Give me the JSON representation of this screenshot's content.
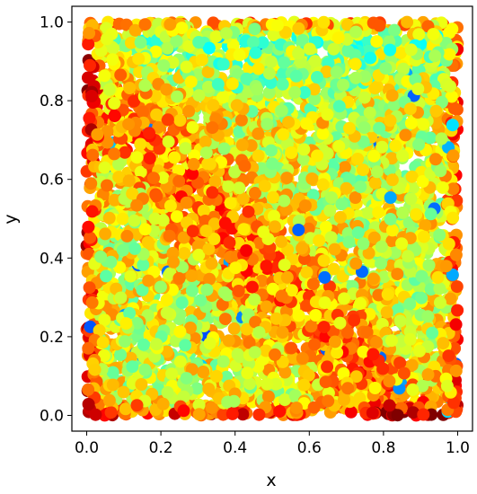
{
  "chart_data": {
    "type": "scatter",
    "title": "",
    "xlabel": "x",
    "ylabel": "y",
    "xlim": [
      -0.04,
      1.04
    ],
    "ylim": [
      -0.04,
      1.04
    ],
    "xticks": [
      0.0,
      0.2,
      0.4,
      0.6,
      0.8,
      1.0
    ],
    "yticks": [
      0.0,
      0.2,
      0.4,
      0.6,
      0.8,
      1.0
    ],
    "xtick_labels": [
      "0.0",
      "0.2",
      "0.4",
      "0.6",
      "0.8",
      "1.0"
    ],
    "ytick_labels": [
      "0.0",
      "0.2",
      "0.4",
      "0.6",
      "0.8",
      "1.0"
    ],
    "grid": false,
    "colormap": "jet",
    "color_range_observed": [
      0.15,
      1.0
    ],
    "point_count_approx": 5000,
    "x_range": [
      0.0,
      1.0
    ],
    "y_range": [
      0.0,
      1.0
    ],
    "notes": ""
  }
}
